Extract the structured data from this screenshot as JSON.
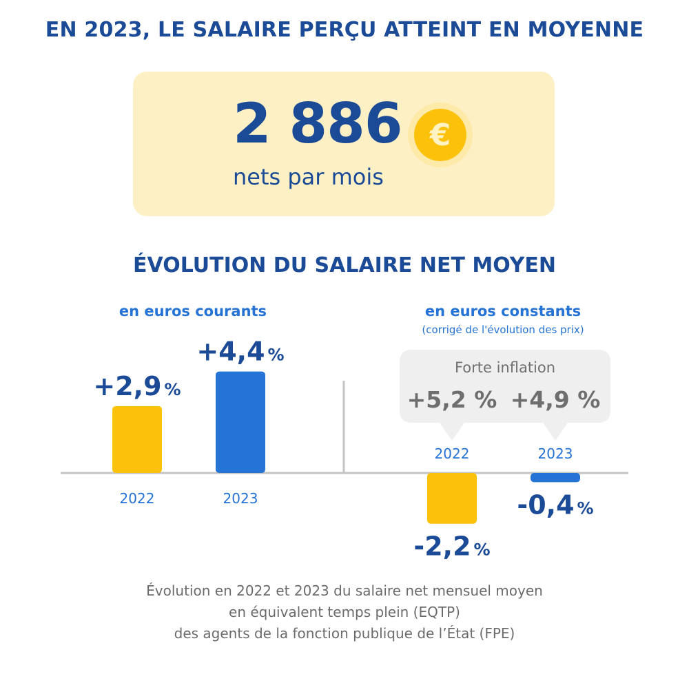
{
  "headline": "EN 2023, LE SALAIRE PERÇU ATTEINT EN MOYENNE",
  "salary": {
    "amount": "2 886",
    "unit": "nets par mois",
    "coin_symbol": "€"
  },
  "section_title": "ÉVOLUTION DU SALAIRE NET MOYEN",
  "colors": {
    "year_2022": "#fcc20b",
    "year_2023": "#2573d4",
    "title": "#1b4a97",
    "callout": "#efefef"
  },
  "chart_data": [
    {
      "type": "bar",
      "title": "en euros courants",
      "categories": [
        "2022",
        "2023"
      ],
      "values": [
        2.9,
        4.4
      ],
      "labels": [
        "+2,9",
        "+4,4"
      ],
      "unit": "%"
    },
    {
      "type": "bar",
      "title": "en euros constants",
      "subtitle": "(corrigé de l'évolution des prix)",
      "categories": [
        "2022",
        "2023"
      ],
      "values": [
        -2.2,
        -0.4
      ],
      "labels": [
        "-2,2",
        "-0,4"
      ],
      "unit": "%",
      "annotation": {
        "title": "Forte inflation",
        "values": [
          5.2,
          4.9
        ],
        "labels": [
          "+5,2 %",
          "+4,9 %"
        ]
      }
    }
  ],
  "caption": [
    "Évolution en 2022 et 2023 du salaire net mensuel moyen",
    "en équivalent temps plein (EQTP)",
    "des agents de la fonction publique de l’État (FPE)"
  ]
}
